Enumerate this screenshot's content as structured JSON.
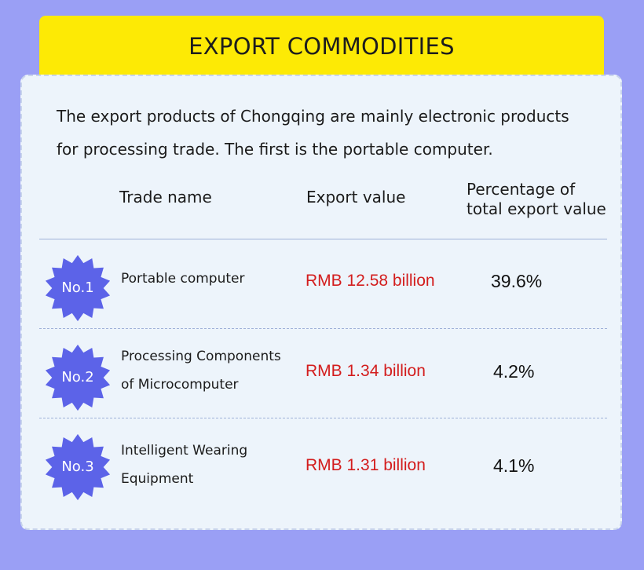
{
  "header": {
    "title": "EXPORT COMMODITIES"
  },
  "intro": {
    "line1": "The export products of Chongqing are mainly electronic products",
    "line2": "for processing trade. The first is the portable computer."
  },
  "columns": {
    "trade_name": "Trade name",
    "export_value": "Export value",
    "percentage_line1": "Percentage of",
    "percentage_line2": "total export value"
  },
  "rows": [
    {
      "rank": "No.1",
      "name_line1": "Portable computer",
      "name_line2": "",
      "export_value": "RMB 12.58 billion",
      "percentage": "39.6%"
    },
    {
      "rank": "No.2",
      "name_line1": "Processing Components",
      "name_line2": "of Microcomputer",
      "export_value": "RMB 1.34 billion",
      "percentage": "4.2%"
    },
    {
      "rank": "No.3",
      "name_line1": "Intelligent Wearing",
      "name_line2": "Equipment",
      "export_value": "RMB 1.31 billion",
      "percentage": "4.1%"
    }
  ],
  "colors": {
    "background": "#9a9ff5",
    "header": "#fdea05",
    "card": "#edf4fb",
    "badge": "#5c63e8",
    "export_value": "#d31d1d"
  },
  "icons": {
    "badge": "starburst-badge-icon"
  }
}
